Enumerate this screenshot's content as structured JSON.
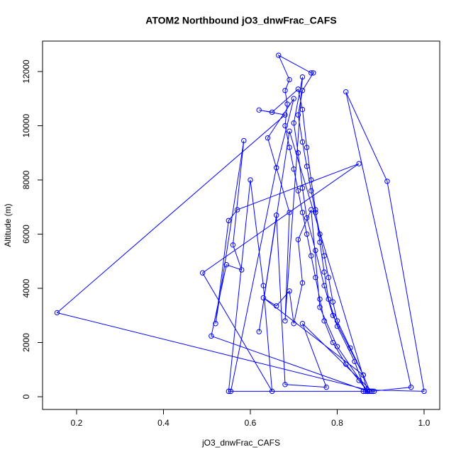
{
  "chart_data": {
    "type": "line",
    "title": "ATOM2 Northbound jO3_dnwFrac_CAFS",
    "x_label": "jO3_dnwFrac_CAFS",
    "y_label": "Altitude (m)",
    "series": [
      {
        "color": "#0000ff",
        "x": [
          0.87,
          0.85,
          0.82,
          0.79,
          0.77,
          0.76,
          0.75,
          0.74,
          0.73,
          0.72,
          0.71,
          0.7,
          0.69,
          0.68,
          0.685,
          0.68,
          0.69,
          0.665,
          0.74,
          0.745,
          0.72,
          0.71,
          0.72,
          0.73,
          0.74,
          0.75,
          0.76,
          0.77,
          0.78,
          0.79,
          0.8,
          0.83,
          0.86,
          0.875,
          0.88,
          0.97,
          0.82,
          0.915,
          1.0,
          0.87,
          0.155,
          0.68,
          0.62,
          0.65,
          0.71,
          0.72,
          0.73,
          0.74,
          0.75,
          0.76,
          0.77,
          0.78,
          0.8,
          0.84,
          0.865,
          0.55,
          0.6,
          0.63,
          0.65,
          0.49,
          0.85,
          0.57,
          0.55,
          0.52,
          0.585,
          0.56,
          0.58,
          0.545,
          0.51,
          0.87,
          0.555,
          0.66,
          0.7,
          0.64,
          0.69,
          0.68,
          0.72,
          0.7,
          0.71,
          0.72,
          0.73,
          0.75,
          0.77,
          0.79,
          0.86,
          0.63,
          0.66,
          0.69,
          0.7,
          0.72,
          0.71,
          0.74,
          0.76,
          0.8,
          0.87,
          0.69,
          0.62,
          0.66,
          0.68,
          0.775,
          0.72,
          0.88,
          0.885,
          0.86
        ],
        "y": [
          200,
          600,
          1200,
          2000,
          2800,
          3600,
          4400,
          5200,
          6000,
          6800,
          7600,
          8400,
          9200,
          10000,
          10800,
          11300,
          11700,
          12600,
          11950,
          11950,
          11300,
          10400,
          9400,
          8500,
          7600,
          6800,
          6000,
          5200,
          4400,
          3500,
          2800,
          1800,
          800,
          200,
          200,
          350,
          11250,
          7950,
          200,
          250,
          3100,
          10400,
          10580,
          10500,
          11350,
          10600,
          9200,
          8000,
          6900,
          5700,
          4600,
          3600,
          2600,
          1300,
          200,
          200,
          8000,
          4100,
          200,
          4570,
          8600,
          6900,
          6500,
          2700,
          9450,
          5600,
          4680,
          4870,
          2240,
          200,
          200,
          8450,
          11000,
          9550,
          6800,
          2800,
          11800,
          10100,
          9000,
          7700,
          6600,
          5400,
          4100,
          3000,
          800,
          3650,
          3350,
          3900,
          2700,
          4200,
          5800,
          6900,
          3300,
          1850,
          200,
          9800,
          2400,
          6700,
          450,
          350,
          2700,
          200,
          200,
          200
        ]
      }
    ],
    "xlim": [
      0.1216,
      1.036
    ],
    "ylim": [
      -470,
      13124
    ],
    "xticks": [
      0.2,
      0.4,
      0.6,
      0.8,
      {
        "value": 1,
        "label": "1.0"
      }
    ],
    "yticks": [
      0,
      2000,
      4000,
      6000,
      8000,
      10000,
      12000
    ]
  }
}
